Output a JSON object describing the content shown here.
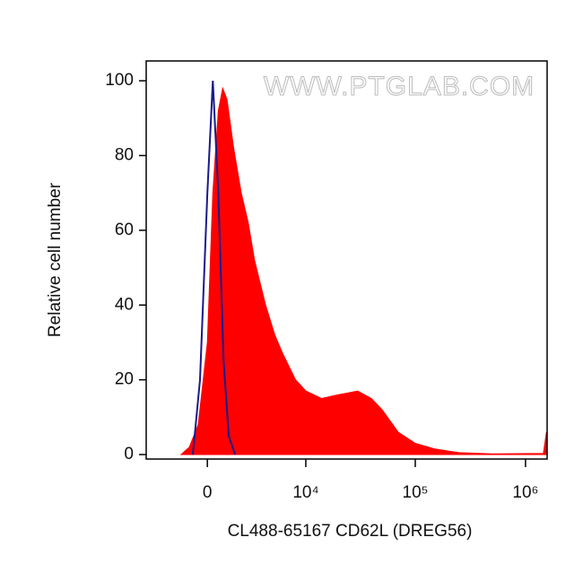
{
  "chart_data": {
    "type": "histogram-overlay",
    "watermark": "WWW.PTGLAB.COM",
    "xlabel": "CL488-65167 CD62L (DREG56)",
    "ylabel": "Relative cell number",
    "xscale": "biexponential",
    "xlim": [
      -4300,
      1570000
    ],
    "ylim": [
      -1.2,
      105.3
    ],
    "xticks": [
      0,
      {
        "value": 10000,
        "label": "10⁴"
      },
      {
        "value": 100000,
        "label": "10⁵"
      },
      {
        "value": 1000000,
        "label": "10⁶"
      }
    ],
    "yticks": [
      0,
      20,
      40,
      60,
      80,
      100
    ],
    "series": [
      {
        "color": "#ff0000",
        "fill": true,
        "x": [
          -1500,
          -1000,
          -500,
          0,
          300,
          600,
          850,
          1100,
          1500,
          2000,
          2500,
          3000,
          4000,
          5000,
          6000,
          8000,
          10000,
          14000,
          20000,
          30000,
          40000,
          50000,
          70000,
          100000,
          150000,
          250000,
          500000,
          1450000,
          1550000
        ],
        "values": [
          0,
          2,
          8,
          30,
          70,
          92,
          98,
          95,
          82,
          70,
          62,
          52,
          40,
          32,
          27,
          20,
          17,
          15,
          16,
          17,
          15,
          12,
          6,
          3,
          1.5,
          0.5,
          0.2,
          0.3,
          6
        ]
      },
      {
        "color": "#1a1a8c",
        "fill": false,
        "x": [
          -800,
          -400,
          0,
          300,
          600,
          900,
          1200,
          1600
        ],
        "values": [
          0,
          20,
          70,
          100,
          70,
          25,
          5,
          0
        ]
      }
    ]
  }
}
